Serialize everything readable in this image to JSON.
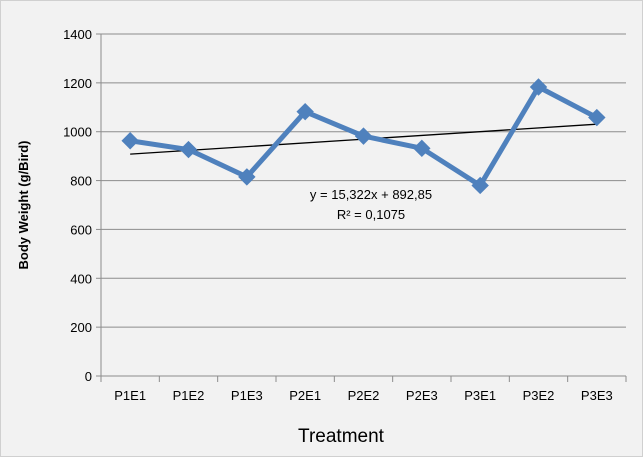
{
  "chart_data": {
    "type": "line",
    "title": "",
    "xlabel": "Treatment",
    "ylabel": "Body Weight (g/Bird)",
    "categories": [
      "P1E1",
      "P1E2",
      "P1E3",
      "P2E1",
      "P2E2",
      "P2E3",
      "P3E1",
      "P3E2",
      "P3E3"
    ],
    "series": [
      {
        "values": [
          963,
          927,
          815,
          1082,
          982,
          932,
          780,
          1183,
          1058
        ],
        "color": "#4f81bd",
        "marker": "diamond"
      }
    ],
    "trendline": {
      "type": "linear",
      "slope": 15.322,
      "intercept": 892.85,
      "color": "#000000",
      "equation_label": "y = 15,322x + 892,85",
      "r2_label": "R² = 0,1075"
    },
    "ylim": [
      0,
      1400
    ],
    "yticks": [
      0,
      200,
      400,
      600,
      800,
      1000,
      1200,
      1400
    ],
    "grid": true,
    "legend": "none"
  }
}
